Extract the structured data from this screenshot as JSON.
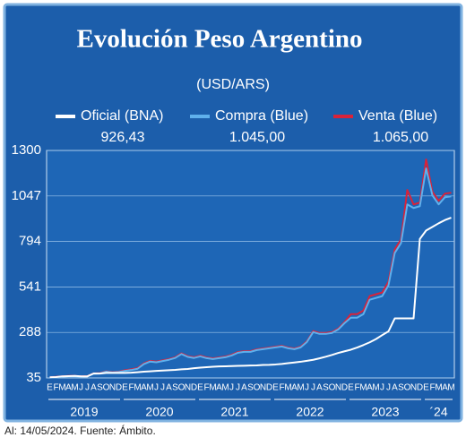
{
  "chart_data": {
    "type": "line",
    "title": "Evolución Peso Argentino",
    "subtitle": "(USD/ARS)",
    "footnote": "Al: 14/05/2024. Fuente: Ámbito.",
    "categories": [
      "E",
      "F",
      "M",
      "A",
      "M",
      "J",
      "J",
      "A",
      "S",
      "O",
      "N",
      "D",
      "E",
      "F",
      "M",
      "A",
      "M",
      "J",
      "J",
      "A",
      "S",
      "O",
      "N",
      "D",
      "E",
      "F",
      "M",
      "A",
      "M",
      "J",
      "J",
      "A",
      "S",
      "O",
      "N",
      "D",
      "E",
      "F",
      "M",
      "A",
      "M",
      "J",
      "J",
      "A",
      "S",
      "O",
      "N",
      "D",
      "E",
      "F",
      "M",
      "A",
      "M",
      "J",
      "J",
      "A",
      "S",
      "O",
      "N",
      "D",
      "E",
      "F",
      "M",
      "A",
      "M"
    ],
    "year_labels": [
      "2019",
      "2020",
      "2021",
      "2022",
      "2023",
      "´24"
    ],
    "ylim": [
      35,
      1300
    ],
    "yticks": [
      35,
      288,
      541,
      794,
      1047,
      1300
    ],
    "grid": true,
    "series": [
      {
        "name": "Venta (Blue)",
        "color": "#d8233a",
        "latest": {
          "value": 1065,
          "label": "1.065,00"
        },
        "values": [
          39,
          41,
          44,
          46,
          46,
          44,
          45,
          60,
          62,
          72,
          67,
          70,
          78,
          83,
          90,
          116,
          130,
          126,
          133,
          140,
          150,
          172,
          156,
          150,
          159,
          149,
          144,
          149,
          154,
          164,
          179,
          184,
          184,
          194,
          199,
          204,
          209,
          214,
          204,
          199,
          209,
          239,
          296,
          285,
          285,
          290,
          310,
          346,
          390,
          390,
          410,
          490,
          500,
          510,
          570,
          750,
          805,
          1080,
          1000,
          1010,
          1250,
          1070,
          1020,
          1060,
          1065
        ]
      },
      {
        "name": "Compra (Blue)",
        "color": "#5fb0ec",
        "latest": {
          "value": 1045,
          "label": "1.045,00"
        },
        "values": [
          37,
          39,
          42,
          44,
          44,
          42,
          43,
          58,
          60,
          70,
          65,
          68,
          74,
          79,
          86,
          112,
          126,
          122,
          129,
          136,
          146,
          168,
          152,
          146,
          155,
          145,
          140,
          145,
          150,
          160,
          175,
          180,
          180,
          190,
          195,
          200,
          205,
          210,
          200,
          195,
          205,
          235,
          290,
          280,
          280,
          285,
          305,
          340,
          370,
          370,
          390,
          470,
          480,
          490,
          550,
          730,
          785,
          1000,
          980,
          990,
          1200,
          1050,
          1000,
          1040,
          1045
        ]
      },
      {
        "name": "Oficial (BNA)",
        "color": "#ffffff",
        "latest": {
          "value": 926.43,
          "label": "926,43"
        },
        "values": [
          39,
          40,
          44,
          45,
          46,
          44,
          44,
          60,
          59,
          63,
          63,
          63,
          63,
          64,
          67,
          70,
          72,
          74,
          76,
          78,
          80,
          83,
          85,
          89,
          92,
          95,
          97,
          99,
          100,
          101,
          102,
          103,
          104,
          105,
          107,
          108,
          110,
          113,
          117,
          121,
          125,
          130,
          136,
          144,
          153,
          163,
          174,
          183,
          192,
          204,
          218,
          233,
          251,
          273,
          294,
          366,
          366,
          366,
          366,
          808,
          855,
          875,
          895,
          913,
          926.43
        ]
      }
    ]
  }
}
